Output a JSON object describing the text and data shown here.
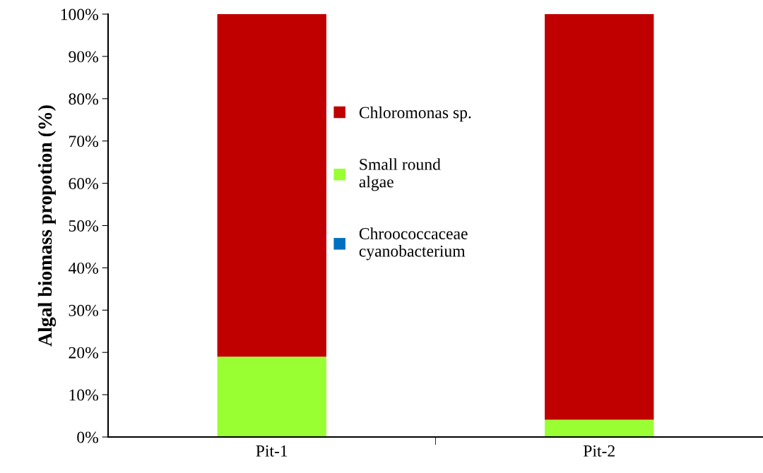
{
  "chart_data": {
    "type": "bar",
    "stacked": true,
    "ylabel": "Algal biomass propotion (%)",
    "categories": [
      "Pit-1",
      "Pit-2"
    ],
    "series": [
      {
        "name": "Chroococcaceae\ncyanobacterium",
        "color": "#0070c0",
        "values": [
          0,
          0
        ]
      },
      {
        "name": "Small round\nalgae",
        "color": "#99ff33",
        "values": [
          19,
          4.1
        ]
      },
      {
        "name": "Chloromonas sp.",
        "color": "#c00000",
        "values": [
          81,
          95.9
        ]
      }
    ],
    "ylim": [
      0,
      100
    ],
    "yticks": [
      {
        "value": 0,
        "label": "0%"
      },
      {
        "value": 10,
        "label": "10%"
      },
      {
        "value": 20,
        "label": "20%"
      },
      {
        "value": 30,
        "label": "30%"
      },
      {
        "value": 40,
        "label": "40%"
      },
      {
        "value": 50,
        "label": "50%"
      },
      {
        "value": 60,
        "label": "60%"
      },
      {
        "value": 70,
        "label": "70%"
      },
      {
        "value": 80,
        "label": "80%"
      },
      {
        "value": 90,
        "label": "90%"
      },
      {
        "value": 100,
        "label": "100%"
      }
    ],
    "grid": false,
    "legend": "center"
  }
}
